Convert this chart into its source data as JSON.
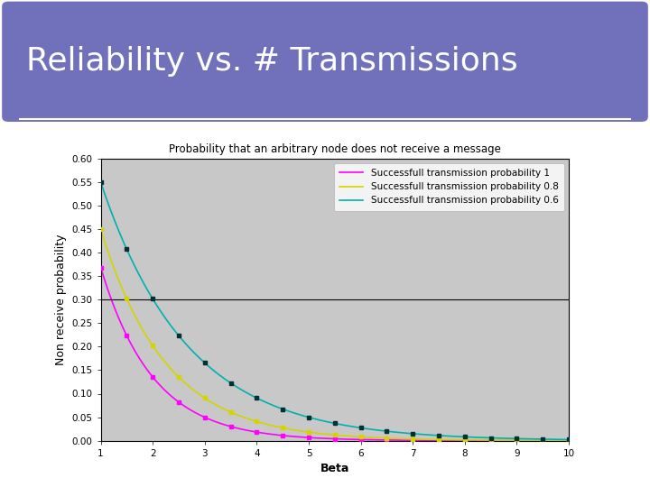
{
  "title": "Reliability vs. # Transmissions",
  "subtitle": "Probability that an arbitrary node does not receive a message",
  "xlabel": "Beta",
  "ylabel": "Non receive probability",
  "xmin": 1,
  "xmax": 10,
  "ymin": 0,
  "ymax": 0.6,
  "yticks": [
    0,
    0.05,
    0.1,
    0.15,
    0.2,
    0.25,
    0.3,
    0.35,
    0.4,
    0.45,
    0.5,
    0.55,
    0.6
  ],
  "xticks": [
    1,
    2,
    3,
    4,
    5,
    6,
    7,
    8,
    9,
    10
  ],
  "series": [
    {
      "label": "Successfull transmission probability 1",
      "p": 1.0,
      "color": "#ff00ff",
      "marker": "s",
      "markercolor": "#ff00ff",
      "linestyle": "-"
    },
    {
      "label": "Successfull transmission probability 0.8",
      "p": 0.8,
      "color": "#d4d400",
      "marker": "s",
      "markercolor": "#d4d400",
      "linestyle": "-"
    },
    {
      "label": "Successfull transmission probability 0.6",
      "p": 0.6,
      "color": "#00b0b0",
      "marker": "s",
      "markercolor": "#003030",
      "linestyle": "-"
    }
  ],
  "header_bg": "#7070bb",
  "header_text_color": "#ffffff",
  "plot_bg": "#c8c8c8",
  "outer_bg": "#ffffff",
  "border_color": "#6090a0",
  "hline_y": 0.3,
  "hline_color": "#000000",
  "title_fontsize": 26,
  "subtitle_fontsize": 8.5,
  "axis_label_fontsize": 9,
  "tick_fontsize": 7.5,
  "legend_fontsize": 7.5
}
